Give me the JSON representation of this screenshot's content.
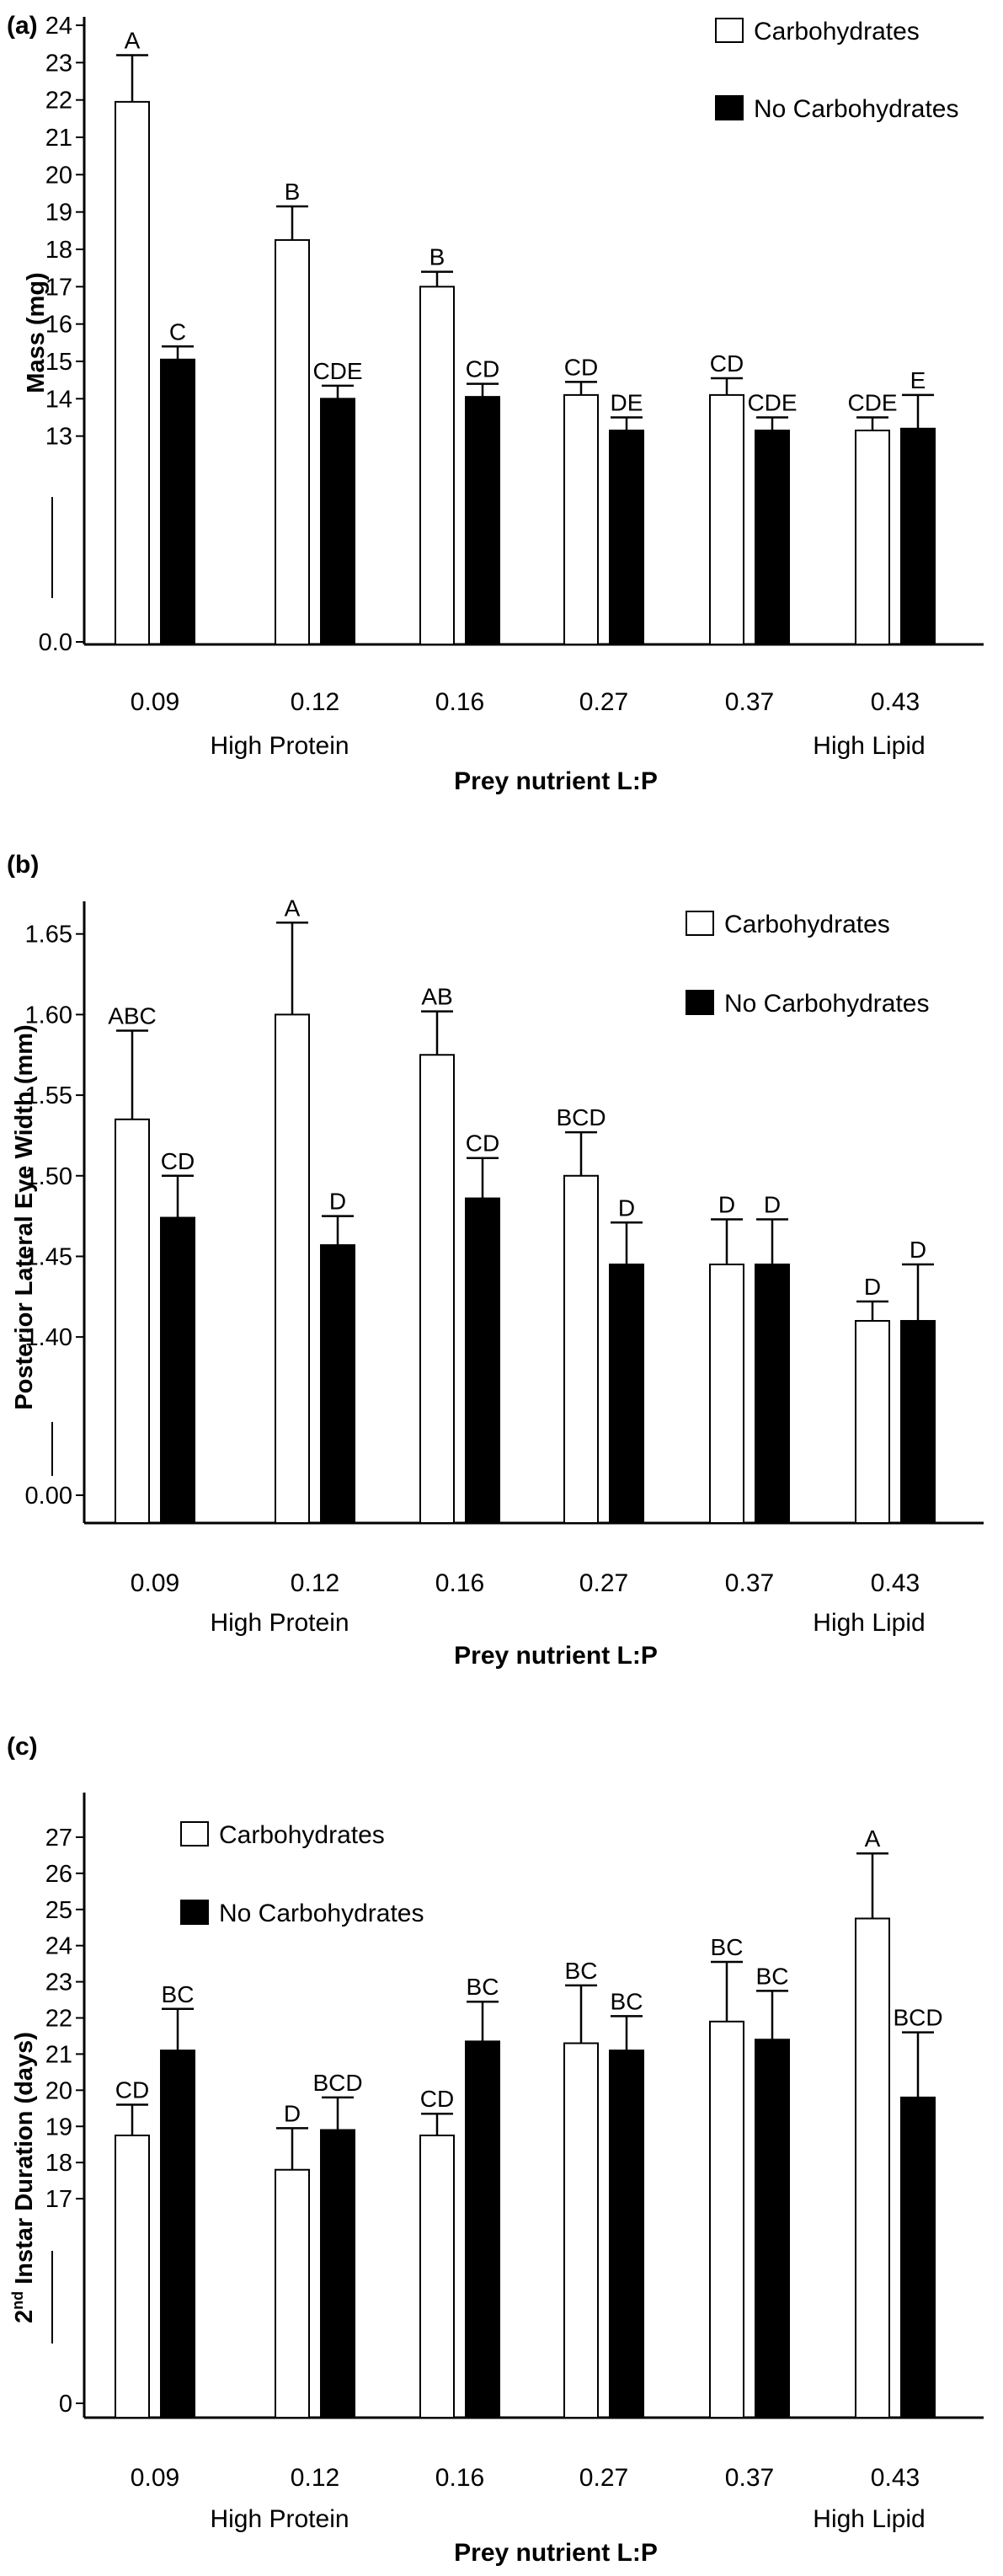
{
  "colors": {
    "carb": "#ffffff",
    "nocarb": "#000000",
    "ink": "#000000"
  },
  "chart_data": [
    {
      "type": "bar",
      "panel_label": "(a)",
      "categories": [
        "0.09",
        "0.12",
        "0.16",
        "0.27",
        "0.37",
        "0.43"
      ],
      "xlabel": "Prey nutrient L:P",
      "x_extremes": {
        "left": "High Protein",
        "right": "High Lipid"
      },
      "ylabel": "Mass  (mg)",
      "axis_break": {
        "zero_label": "0.0",
        "from": 12,
        "to": 24
      },
      "yticks": [
        "13",
        "14",
        "15",
        "16",
        "17",
        "18",
        "19",
        "20",
        "21",
        "22",
        "23",
        "24"
      ],
      "legend_position": "top-right",
      "series": [
        {
          "name": "Carbohydrates",
          "fill": "white",
          "values": [
            21.95,
            18.25,
            17.0,
            14.1,
            14.1,
            13.15
          ],
          "errors": [
            1.25,
            0.9,
            0.4,
            0.35,
            0.45,
            0.35
          ],
          "letters": [
            "A",
            "B",
            "B",
            "CD",
            "CD",
            "CDE"
          ]
        },
        {
          "name": "No Carbohydrates",
          "fill": "black",
          "values": [
            15.05,
            14.0,
            14.05,
            13.15,
            13.15,
            13.2
          ],
          "errors": [
            0.35,
            0.35,
            0.35,
            0.35,
            0.35,
            0.9
          ],
          "letters": [
            "C",
            "CDE",
            "CD",
            "DE",
            "CDE",
            "E"
          ]
        }
      ]
    },
    {
      "type": "bar",
      "panel_label": "(b)",
      "categories": [
        "0.09",
        "0.12",
        "0.16",
        "0.27",
        "0.37",
        "0.43"
      ],
      "xlabel": "Prey nutrient L:P",
      "x_extremes": {
        "left": "High Protein",
        "right": "High Lipid"
      },
      "ylabel": "Posterior Lateral Eye Width (mm)",
      "axis_break": {
        "zero_label": "0.00",
        "from": 1.375,
        "to": 1.665
      },
      "yticks": [
        "1.40",
        "1.45",
        "1.50",
        "1.55",
        "1.60",
        "1.65"
      ],
      "legend_position": "top-right",
      "series": [
        {
          "name": "Carbohydrates",
          "fill": "white",
          "values": [
            1.535,
            1.6,
            1.575,
            1.5,
            1.445,
            1.41
          ],
          "errors": [
            0.055,
            0.057,
            0.027,
            0.027,
            0.028,
            0.012
          ],
          "letters": [
            "ABC",
            "A",
            "AB",
            "BCD",
            "D",
            "D"
          ]
        },
        {
          "name": "No Carbohydrates",
          "fill": "black",
          "values": [
            1.474,
            1.457,
            1.486,
            1.445,
            1.445,
            1.41
          ],
          "errors": [
            0.026,
            0.018,
            0.025,
            0.026,
            0.028,
            0.035
          ],
          "letters": [
            "CD",
            "D",
            "CD",
            "D",
            "D",
            "D"
          ]
        }
      ]
    },
    {
      "type": "bar",
      "panel_label": "(c)",
      "categories": [
        "0.09",
        "0.12",
        "0.16",
        "0.27",
        "0.37",
        "0.43"
      ],
      "xlabel": "Prey nutrient L:P",
      "x_extremes": {
        "left": "High Protein",
        "right": "High Lipid"
      },
      "ylabel_main": "2",
      "ylabel_sup": "nd",
      "ylabel_rest": " Instar Duration (days)",
      "axis_break": {
        "zero_label": "0",
        "from": 16,
        "to": 28
      },
      "yticks": [
        "17",
        "18",
        "19",
        "20",
        "21",
        "22",
        "23",
        "24",
        "25",
        "26",
        "27"
      ],
      "legend_position": "top-left",
      "series": [
        {
          "name": "Carbohydrates",
          "fill": "white",
          "values": [
            18.75,
            17.8,
            18.75,
            21.3,
            21.9,
            24.75
          ],
          "errors": [
            0.85,
            1.15,
            0.6,
            1.6,
            1.65,
            1.8
          ],
          "letters": [
            "CD",
            "D",
            "CD",
            "BC",
            "BC",
            "A"
          ]
        },
        {
          "name": "No Carbohydrates",
          "fill": "black",
          "values": [
            21.1,
            18.9,
            21.35,
            21.1,
            21.4,
            19.8
          ],
          "errors": [
            1.15,
            0.9,
            1.1,
            0.95,
            1.35,
            1.8
          ],
          "letters": [
            "BC",
            "BCD",
            "BC",
            "BC",
            "BC",
            "BCD"
          ]
        }
      ]
    }
  ]
}
